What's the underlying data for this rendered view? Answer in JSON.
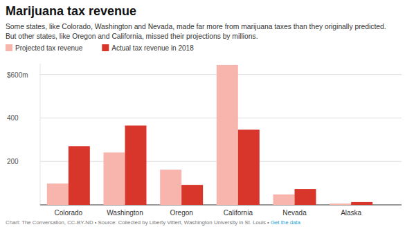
{
  "chart_data": {
    "type": "bar",
    "title": "Marijuana tax revenue",
    "subtitle": [
      "Some states, like Colorado, Washington and Nevada, made far more from marijuana taxes than they originally predicted.",
      "But other states, like Oregon and California, missed their projections by millions."
    ],
    "categories": [
      "Colorado",
      "Washington",
      "Oregon",
      "California",
      "Nevada",
      "Alaska"
    ],
    "series": [
      {
        "name": "Projected tax revenue",
        "color": "#f8b5ad",
        "values": [
          98,
          241,
          162,
          644,
          48,
          6
        ]
      },
      {
        "name": "Actual tax revenue in 2018",
        "color": "#d8352b",
        "values": [
          270,
          365,
          92,
          346,
          73,
          13
        ]
      }
    ],
    "ylim": [
      0,
      650
    ],
    "yticks": [
      200,
      400,
      {
        "value": 600,
        "label": "$600m"
      }
    ],
    "grid": true,
    "legend": "top-left",
    "credit": "Chart: The Conversation, CC-BY-ND • Source: Collected by Liberty Vittert, Washington University in St. Louis •",
    "credit_link": "Get the data"
  }
}
